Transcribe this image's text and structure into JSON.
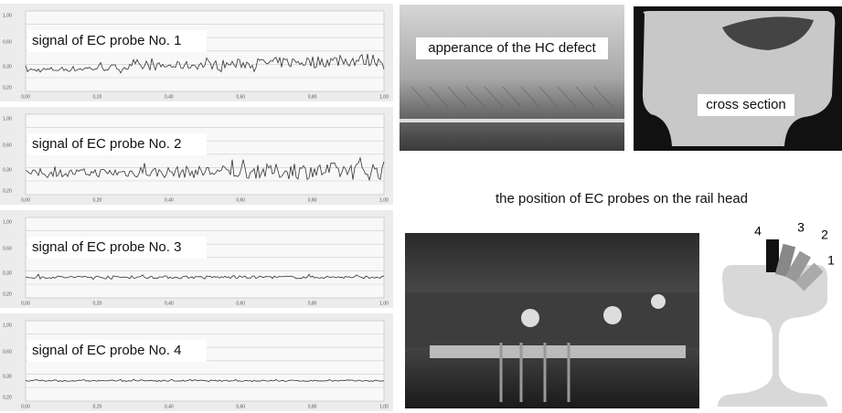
{
  "panels": [
    {
      "label": "signal of EC probe No. 1"
    },
    {
      "label": "signal of EC probe No. 2"
    },
    {
      "label": "signal of EC probe No. 3"
    },
    {
      "label": "signal of EC probe No. 4"
    }
  ],
  "y_tick_labels": [
    "1,00",
    "0,60",
    "0,30",
    "0,20"
  ],
  "x_tick_labels": [
    "0,00",
    "0,20",
    "0,40",
    "0,60",
    "0,80",
    "1,00"
  ],
  "photos": {
    "defect": "apperance of the HC defect",
    "cross_section": "cross section"
  },
  "probe_position_title": "the position of EC probes on the rail head",
  "probe_numbers": [
    "4",
    "3",
    "2",
    "1"
  ]
}
